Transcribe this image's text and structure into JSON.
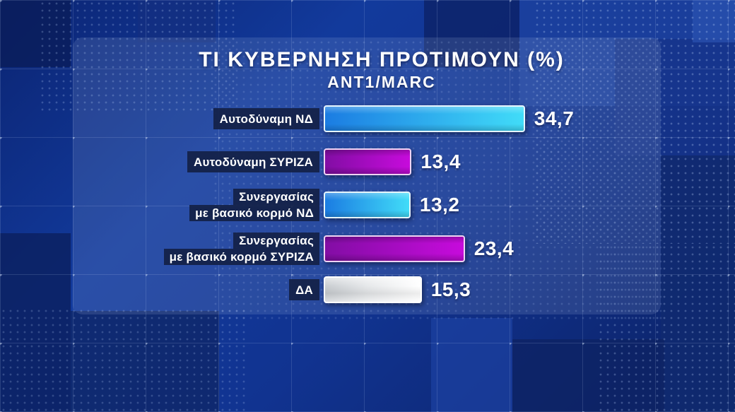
{
  "header": {
    "title": "ΤΙ ΚΥΒΕΡΝΗΣΗ ΠΡΟΤΙΜΟΥΝ (%)",
    "subtitle": "ANT1/MARC"
  },
  "chart_data": {
    "type": "bar",
    "orientation": "horizontal",
    "title": "ΤΙ ΚΥΒΕΡΝΗΣΗ ΠΡΟΤΙΜΟΥΝ (%)",
    "subtitle": "ANT1/MARC",
    "unit": "%",
    "legend": "none",
    "grid": "off",
    "xlim": [
      0,
      40
    ],
    "categories": [
      "Αυτοδύναμη ΝΔ",
      "Αυτοδύναμη ΣΥΡΙΖΑ",
      "Συνεργασίας με βασικό κορμό ΝΔ",
      "Συνεργασίας με βασικό κορμό ΣΥΡΙΖΑ",
      "ΔΑ"
    ],
    "values": [
      34.7,
      13.4,
      13.2,
      23.4,
      15.3
    ],
    "rows": [
      {
        "label_lines": [
          "Αυτοδύναμη ΝΔ"
        ],
        "value": 34.7,
        "value_label": "34,7",
        "color": "cyan"
      },
      {
        "label_lines": [
          "Αυτοδύναμη ΣΥΡΙΖΑ"
        ],
        "value": 13.4,
        "value_label": "13,4",
        "color": "magenta"
      },
      {
        "label_lines": [
          "Συνεργασίας",
          "με βασικό κορμό ΝΔ"
        ],
        "value": 13.2,
        "value_label": "13,2",
        "color": "cyan"
      },
      {
        "label_lines": [
          "Συνεργασίας",
          "με βασικό κορμό ΣΥΡΙΖΑ"
        ],
        "value": 23.4,
        "value_label": "23,4",
        "color": "magenta"
      },
      {
        "label_lines": [
          "ΔΑ"
        ],
        "value": 15.3,
        "value_label": "15,3",
        "color": "white"
      }
    ],
    "palette": {
      "cyan": {
        "from": "#1b7ce2",
        "to": "#41dcf8",
        "border": "#e6f5fe"
      },
      "magenta": {
        "from": "#820da4",
        "to": "#c70bdc",
        "border": "#efd4f4"
      },
      "white": {
        "from": "#c9cdd1",
        "to": "#ffffff",
        "border": "#ffffff"
      }
    },
    "background_color": "#11318c",
    "label_box_color": "#14214a",
    "text_color": "#ffffff"
  }
}
